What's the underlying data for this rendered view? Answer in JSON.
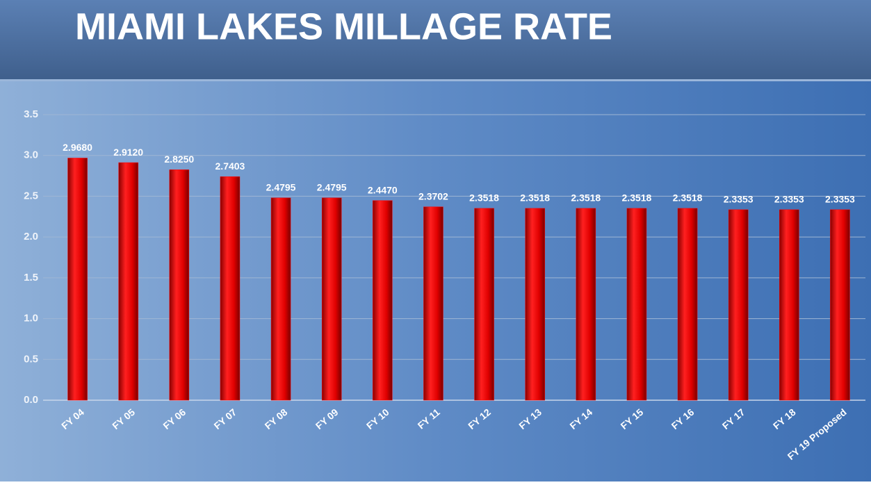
{
  "chart_data": {
    "type": "bar",
    "title": "MIAMI LAKES MILLAGE RATE",
    "categories": [
      "FY 04",
      "FY 05",
      "FY 06",
      "FY 07",
      "FY 08",
      "FY 09",
      "FY 10",
      "FY 11",
      "FY 12",
      "FY 13",
      "FY 14",
      "FY 15",
      "FY 16",
      "FY 17",
      "FY 18",
      "FY 19 Proposed"
    ],
    "values": [
      2.968,
      2.912,
      2.825,
      2.7403,
      2.4795,
      2.4795,
      2.447,
      2.3702,
      2.3518,
      2.3518,
      2.3518,
      2.3518,
      2.3518,
      2.3353,
      2.3353,
      2.3353
    ],
    "value_labels": [
      "2.9680",
      "2.9120",
      "2.8250",
      "2.7403",
      "2.4795",
      "2.4795",
      "2.4470",
      "2.3702",
      "2.3518",
      "2.3518",
      "2.3518",
      "2.3518",
      "2.3518",
      "2.3353",
      "2.3353",
      "2.3353"
    ],
    "color": "#ff0000",
    "ylim": [
      0,
      3.5
    ],
    "yticks": [
      {
        "value": 0,
        "label": "0.0"
      },
      0.5,
      {
        "value": 1,
        "label": "1.0"
      },
      1.5,
      {
        "value": 2,
        "label": "2.0"
      },
      2.5,
      {
        "value": 3,
        "label": "3.0"
      },
      3.5
    ],
    "grid": true
  }
}
